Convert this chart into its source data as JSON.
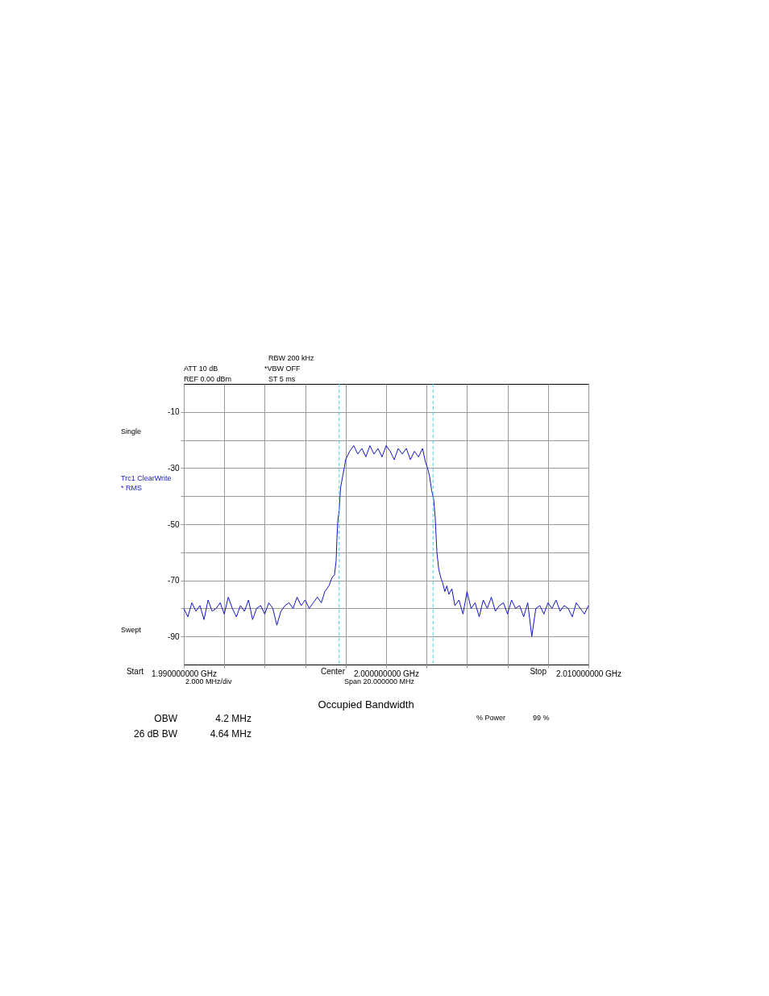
{
  "chart_data": {
    "type": "line",
    "x": [
      1.99,
      1.9902,
      1.9904,
      1.9906,
      1.9908,
      1.991,
      1.9912,
      1.9914,
      1.9916,
      1.9918,
      1.992,
      1.9922,
      1.9924,
      1.9926,
      1.9928,
      1.993,
      1.9932,
      1.9934,
      1.9936,
      1.9938,
      1.994,
      1.9942,
      1.9944,
      1.9946,
      1.9948,
      1.995,
      1.9952,
      1.9954,
      1.9956,
      1.9958,
      1.996,
      1.9962,
      1.9964,
      1.9966,
      1.9968,
      1.99697,
      1.99717,
      1.99733,
      1.99745,
      1.99753,
      1.99757,
      1.99761,
      1.99768,
      1.99775,
      1.99785,
      1.99793,
      1.998,
      1.9982,
      1.9984,
      1.9986,
      1.9988,
      1.999,
      1.9992,
      1.9994,
      1.9996,
      1.9998,
      2.0,
      2.0002,
      2.0004,
      2.0006,
      2.0008,
      2.001,
      2.0012,
      2.0014,
      2.0016,
      2.0018,
      2.00195,
      2.00205,
      2.00215,
      2.00225,
      2.00235,
      2.00243,
      2.00251,
      2.0026,
      2.0027,
      2.0028,
      2.0029,
      2.003,
      2.0031,
      2.00325,
      2.0034,
      2.0036,
      2.0038,
      2.004,
      2.0042,
      2.0044,
      2.0046,
      2.0048,
      2.005,
      2.0052,
      2.0054,
      2.0056,
      2.0058,
      2.006,
      2.0062,
      2.0064,
      2.0066,
      2.0068,
      2.007,
      2.0072,
      2.0074,
      2.0076,
      2.0078,
      2.008,
      2.0082,
      2.0084,
      2.0086,
      2.0088,
      2.009,
      2.0092,
      2.0094,
      2.0096,
      2.0098,
      2.01
    ],
    "series": [
      {
        "color": "#1414c8",
        "values": [
          -80,
          -83,
          -78,
          -81,
          -79,
          -84,
          -77,
          -81,
          -80,
          -78,
          -82,
          -76,
          -80,
          -83,
          -79,
          -81,
          -77,
          -84,
          -80,
          -79,
          -82,
          -78,
          -80,
          -86,
          -81,
          -79,
          -78,
          -80,
          -76,
          -79,
          -77,
          -80,
          -78,
          -76,
          -78,
          -74,
          -72,
          -69,
          -68,
          -63,
          -55,
          -49,
          -45,
          -37,
          -33,
          -30,
          -27,
          -24,
          -22,
          -25,
          -23,
          -26,
          -22,
          -25,
          -23,
          -26,
          -22,
          -24,
          -27,
          -23,
          -25,
          -23,
          -27,
          -24,
          -26,
          -23,
          -28,
          -30,
          -33,
          -38,
          -41,
          -48,
          -60,
          -66,
          -69,
          -71,
          -74,
          -72,
          -75,
          -73,
          -79,
          -77,
          -82,
          -74,
          -80,
          -78,
          -83,
          -77,
          -80,
          -76,
          -81,
          -79,
          -78,
          -82,
          -77,
          -80,
          -79,
          -83,
          -78,
          -90,
          -80,
          -79,
          -82,
          -78,
          -80,
          -77,
          -81,
          -79,
          -80,
          -83,
          -78,
          -80,
          -82,
          -79
        ]
      }
    ],
    "xlim": [
      1.99,
      2.01
    ],
    "xticks": [
      {
        "value": 1.99,
        "label": "1.990000000 GHz"
      },
      {
        "value": 1.992,
        "label": null
      },
      {
        "value": 1.994,
        "label": null
      },
      {
        "value": 1.996,
        "label": null
      },
      {
        "value": 1.998,
        "label": null
      },
      {
        "value": 2.0,
        "label": "2.000000000 GHz"
      },
      {
        "value": 2.002,
        "label": null
      },
      {
        "value": 2.004,
        "label": null
      },
      {
        "value": 2.006,
        "label": null
      },
      {
        "value": 2.008,
        "label": null
      },
      {
        "value": 2.01,
        "label": "2.010000000 GHz"
      }
    ],
    "ylim": [
      -100,
      0
    ],
    "yticks": [
      -10,
      {
        "value": -20,
        "label": null
      },
      -30,
      {
        "value": -40,
        "label": null
      },
      -50,
      {
        "value": -60,
        "label": null
      },
      -70,
      {
        "value": -80,
        "label": null
      },
      -90
    ],
    "grid": true,
    "ref_lines": [
      {
        "axis": "x",
        "value": 1.99768,
        "color": "#40d0d8",
        "line_style": "dashed"
      },
      {
        "axis": "x",
        "value": 2.00232,
        "color": "#40d0d8",
        "line_style": "dashed"
      }
    ],
    "annotations": [
      "RBW 200 kHz",
      "ATT 10 dB",
      "*VBW  OFF",
      "REF  0.00 dBm",
      "ST     5 ms",
      "Single",
      "Trc1 ClearWrite",
      "* RMS",
      "Swept",
      "2.000 MHz/div",
      "Span 20.000000 MHz",
      "Occupied Bandwidth",
      "OBW",
      "4.2 MHz",
      "26 dB BW",
      "4.64 MHz",
      "% Power",
      "99 %",
      "Start",
      "Center",
      "Stop"
    ]
  }
}
